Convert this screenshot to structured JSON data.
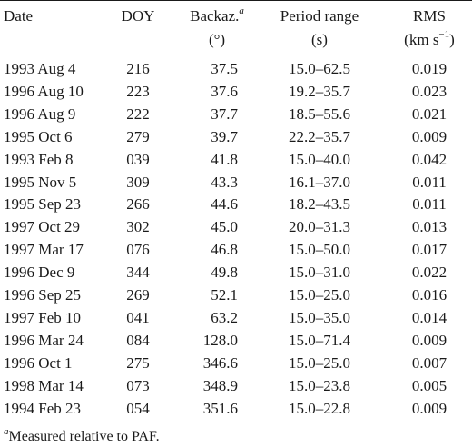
{
  "table": {
    "headers": {
      "date": "Date",
      "doy": "DOY",
      "backaz": "Backaz.",
      "backaz_mark": "a",
      "backaz_unit": "(°)",
      "period": "Period range",
      "period_unit": "(s)",
      "rms": "RMS",
      "rms_unit_pre": "(km s",
      "rms_unit_exp": "−1",
      "rms_unit_post": ")"
    },
    "rows": [
      {
        "date": "1993 Aug 4",
        "doy": "216",
        "backaz": "37.5",
        "period": "15.0–62.5",
        "rms": "0.019"
      },
      {
        "date": "1996 Aug 10",
        "doy": "223",
        "backaz": "37.6",
        "period": "19.2–35.7",
        "rms": "0.023"
      },
      {
        "date": "1996 Aug 9",
        "doy": "222",
        "backaz": "37.7",
        "period": "18.5–55.6",
        "rms": "0.021"
      },
      {
        "date": "1995 Oct 6",
        "doy": "279",
        "backaz": "39.7",
        "period": "22.2–35.7",
        "rms": "0.009"
      },
      {
        "date": "1993 Feb 8",
        "doy": "039",
        "backaz": "41.8",
        "period": "15.0–40.0",
        "rms": "0.042"
      },
      {
        "date": "1995 Nov 5",
        "doy": "309",
        "backaz": "43.3",
        "period": "16.1–37.0",
        "rms": "0.011"
      },
      {
        "date": "1995 Sep 23",
        "doy": "266",
        "backaz": "44.6",
        "period": "18.2–43.5",
        "rms": "0.011"
      },
      {
        "date": "1997 Oct 29",
        "doy": "302",
        "backaz": "45.0",
        "period": "20.0–31.3",
        "rms": "0.013"
      },
      {
        "date": "1997 Mar 17",
        "doy": "076",
        "backaz": "46.8",
        "period": "15.0–50.0",
        "rms": "0.017"
      },
      {
        "date": "1996 Dec 9",
        "doy": "344",
        "backaz": "49.8",
        "period": "15.0–31.0",
        "rms": "0.022"
      },
      {
        "date": "1996 Sep 25",
        "doy": "269",
        "backaz": "52.1",
        "period": "15.0–25.0",
        "rms": "0.016"
      },
      {
        "date": "1997 Feb 10",
        "doy": "041",
        "backaz": "63.2",
        "period": "15.0–35.0",
        "rms": "0.014"
      },
      {
        "date": "1996 Mar 24",
        "doy": "084",
        "backaz": "128.0",
        "period": "15.0–71.4",
        "rms": "0.009"
      },
      {
        "date": "1996 Oct 1",
        "doy": "275",
        "backaz": "346.6",
        "period": "15.0–25.0",
        "rms": "0.007"
      },
      {
        "date": "1998 Mar 14",
        "doy": "073",
        "backaz": "348.9",
        "period": "15.0–23.8",
        "rms": "0.005"
      },
      {
        "date": "1994 Feb 23",
        "doy": "054",
        "backaz": "351.6",
        "period": "15.0–22.8",
        "rms": "0.009"
      }
    ]
  },
  "footnote": {
    "mark": "a",
    "text": "Measured relative to PAF."
  }
}
